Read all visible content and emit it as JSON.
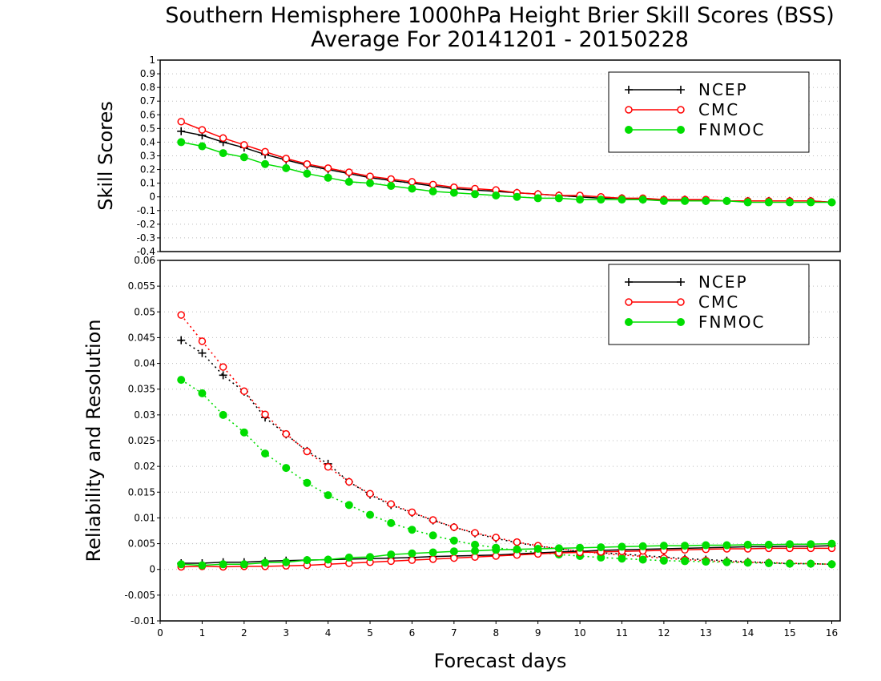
{
  "title_line1": "Southern Hemisphere 1000hPa Height Brier Skill Scores (BSS)",
  "title_line2": "Average For 20141201 - 20150228",
  "chart_data": [
    {
      "type": "line",
      "ylabel": "Skill Scores",
      "xlim": [
        0,
        16.2
      ],
      "ylim": [
        -0.4,
        1
      ],
      "yticks": [
        -0.4,
        -0.3,
        -0.2,
        -0.1,
        0,
        0.1,
        0.2,
        0.3,
        0.4,
        0.5,
        0.6,
        0.7,
        0.8,
        0.9,
        1
      ],
      "ytick_labels": [
        "-0.4",
        "-0.3",
        "-0.2",
        "-0.1",
        "0",
        "0.1",
        "0.2",
        "0.3",
        "0.4",
        "0.5",
        "0.6",
        "0.7",
        "0.8",
        "0.9",
        "1"
      ],
      "grid": "horizontal dotted",
      "legend": "top-right",
      "x": [
        0.5,
        1,
        1.5,
        2,
        2.5,
        3,
        3.5,
        4,
        4.5,
        5,
        5.5,
        6,
        6.5,
        7,
        7.5,
        8,
        8.5,
        9,
        9.5,
        10,
        10.5,
        11,
        11.5,
        12,
        12.5,
        13,
        13.5,
        14,
        14.5,
        15,
        15.5,
        16
      ],
      "series": [
        {
          "name": "NCEP",
          "color": "#000000",
          "marker": "plus",
          "style": "solid",
          "values": [
            0.48,
            0.45,
            0.4,
            0.36,
            0.31,
            0.27,
            0.23,
            0.2,
            0.17,
            0.14,
            0.12,
            0.1,
            0.08,
            0.06,
            0.05,
            0.04,
            0.03,
            0.02,
            0.01,
            0.0,
            -0.01,
            -0.01,
            -0.02,
            -0.02,
            -0.02,
            -0.03,
            -0.03,
            -0.03,
            -0.03,
            -0.03,
            -0.03,
            -0.04
          ]
        },
        {
          "name": "CMC",
          "color": "#ff0000",
          "marker": "open-circle",
          "style": "solid",
          "values": [
            0.55,
            0.49,
            0.43,
            0.38,
            0.33,
            0.28,
            0.24,
            0.21,
            0.18,
            0.15,
            0.13,
            0.11,
            0.09,
            0.07,
            0.06,
            0.05,
            0.03,
            0.02,
            0.01,
            0.01,
            0.0,
            -0.01,
            -0.01,
            -0.02,
            -0.02,
            -0.02,
            -0.03,
            -0.03,
            -0.03,
            -0.03,
            -0.03,
            -0.04
          ]
        },
        {
          "name": "FNMOC",
          "color": "#00dd00",
          "marker": "filled-circle",
          "style": "solid",
          "values": [
            0.4,
            0.37,
            0.32,
            0.29,
            0.24,
            0.21,
            0.17,
            0.14,
            0.11,
            0.1,
            0.08,
            0.06,
            0.04,
            0.03,
            0.02,
            0.01,
            0.0,
            -0.01,
            -0.01,
            -0.02,
            -0.02,
            -0.02,
            -0.02,
            -0.03,
            -0.03,
            -0.03,
            -0.03,
            -0.04,
            -0.04,
            -0.04,
            -0.04,
            -0.04
          ]
        }
      ]
    },
    {
      "type": "line",
      "ylabel": "Reliability and Resolution",
      "xlabel": "Forecast days",
      "xlim": [
        0,
        16.2
      ],
      "ylim": [
        -0.01,
        0.06
      ],
      "xticks": [
        0,
        1,
        2,
        3,
        4,
        5,
        6,
        7,
        8,
        9,
        10,
        11,
        12,
        13,
        14,
        15,
        16
      ],
      "xtick_labels": [
        "0",
        "1",
        "2",
        "3",
        "4",
        "5",
        "6",
        "7",
        "8",
        "9",
        "10",
        "11",
        "12",
        "13",
        "14",
        "15",
        "16"
      ],
      "yticks": [
        -0.01,
        -0.005,
        0,
        0.005,
        0.01,
        0.015,
        0.02,
        0.025,
        0.03,
        0.035,
        0.04,
        0.045,
        0.05,
        0.055,
        0.06
      ],
      "ytick_labels": [
        "-0.01",
        "-0.005",
        "0",
        "0.005",
        "0.01",
        "0.015",
        "0.02",
        "0.025",
        "0.03",
        "0.035",
        "0.04",
        "0.045",
        "0.05",
        "0.055",
        "0.06"
      ],
      "grid": "horizontal dotted",
      "legend": "top-right",
      "x": [
        0.5,
        1,
        1.5,
        2,
        2.5,
        3,
        3.5,
        4,
        4.5,
        5,
        5.5,
        6,
        6.5,
        7,
        7.5,
        8,
        8.5,
        9,
        9.5,
        10,
        10.5,
        11,
        11.5,
        12,
        12.5,
        13,
        13.5,
        14,
        14.5,
        15,
        15.5,
        16
      ],
      "series": [
        {
          "name": "NCEP",
          "component": "reliability",
          "color": "#000000",
          "marker": "plus",
          "style": "dotted",
          "values": [
            0.0445,
            0.042,
            0.0377,
            0.0345,
            0.0295,
            0.0262,
            0.023,
            0.0205,
            0.017,
            0.0145,
            0.0125,
            0.011,
            0.0095,
            0.0082,
            0.007,
            0.006,
            0.0052,
            0.0045,
            0.004,
            0.0035,
            0.0032,
            0.003,
            0.0027,
            0.0024,
            0.0021,
            0.0019,
            0.0017,
            0.0015,
            0.0013,
            0.0011,
            0.0011,
            0.001
          ]
        },
        {
          "name": "CMC",
          "component": "reliability",
          "color": "#ff0000",
          "marker": "open-circle",
          "style": "dotted",
          "values": [
            0.0494,
            0.0443,
            0.0393,
            0.0346,
            0.0301,
            0.0263,
            0.0229,
            0.0199,
            0.017,
            0.0147,
            0.0127,
            0.0111,
            0.0096,
            0.0082,
            0.0071,
            0.0062,
            0.0053,
            0.0046,
            0.004,
            0.0035,
            0.0031,
            0.0028,
            0.0025,
            0.0022,
            0.0019,
            0.0017,
            0.0015,
            0.0014,
            0.0013,
            0.0012,
            0.0011,
            0.001
          ]
        },
        {
          "name": "FNMOC",
          "component": "reliability",
          "color": "#00dd00",
          "marker": "filled-circle",
          "style": "dotted",
          "values": [
            0.0368,
            0.0342,
            0.03,
            0.0266,
            0.0225,
            0.0197,
            0.0168,
            0.0144,
            0.0125,
            0.0106,
            0.009,
            0.0077,
            0.0066,
            0.0056,
            0.0048,
            0.0042,
            0.0037,
            0.0033,
            0.0029,
            0.0026,
            0.0023,
            0.0021,
            0.0019,
            0.0017,
            0.0016,
            0.0015,
            0.0014,
            0.0013,
            0.0012,
            0.0011,
            0.0011,
            0.001
          ]
        },
        {
          "name": "NCEP",
          "component": "resolution",
          "color": "#000000",
          "marker": "plus",
          "style": "solid",
          "values": [
            0.0012,
            0.0012,
            0.0014,
            0.0014,
            0.0016,
            0.0017,
            0.0018,
            0.0019,
            0.002,
            0.0021,
            0.0022,
            0.0023,
            0.0025,
            0.0026,
            0.0027,
            0.0028,
            0.003,
            0.0032,
            0.0034,
            0.0035,
            0.0037,
            0.0038,
            0.0039,
            0.004,
            0.0041,
            0.0042,
            0.0043,
            0.0044,
            0.0044,
            0.0045,
            0.0045,
            0.0046
          ]
        },
        {
          "name": "CMC",
          "component": "resolution",
          "color": "#ff0000",
          "marker": "open-circle",
          "style": "solid",
          "values": [
            0.0005,
            0.0006,
            0.0005,
            0.0006,
            0.0006,
            0.0007,
            0.0008,
            0.001,
            0.0012,
            0.0014,
            0.0016,
            0.0018,
            0.002,
            0.0022,
            0.0024,
            0.0026,
            0.0028,
            0.003,
            0.0032,
            0.0033,
            0.0034,
            0.0035,
            0.0036,
            0.0037,
            0.0038,
            0.0039,
            0.004,
            0.004,
            0.0041,
            0.0041,
            0.0041,
            0.0041
          ]
        },
        {
          "name": "FNMOC",
          "component": "resolution",
          "color": "#00dd00",
          "marker": "filled-circle",
          "style": "solid",
          "values": [
            0.001,
            0.0008,
            0.001,
            0.001,
            0.0013,
            0.0014,
            0.0018,
            0.0019,
            0.0023,
            0.0024,
            0.0029,
            0.0031,
            0.0033,
            0.0035,
            0.0036,
            0.0038,
            0.0039,
            0.004,
            0.0041,
            0.0042,
            0.0043,
            0.0044,
            0.0045,
            0.0046,
            0.0046,
            0.0047,
            0.0047,
            0.0048,
            0.0048,
            0.0049,
            0.0049,
            0.005
          ]
        }
      ]
    }
  ]
}
